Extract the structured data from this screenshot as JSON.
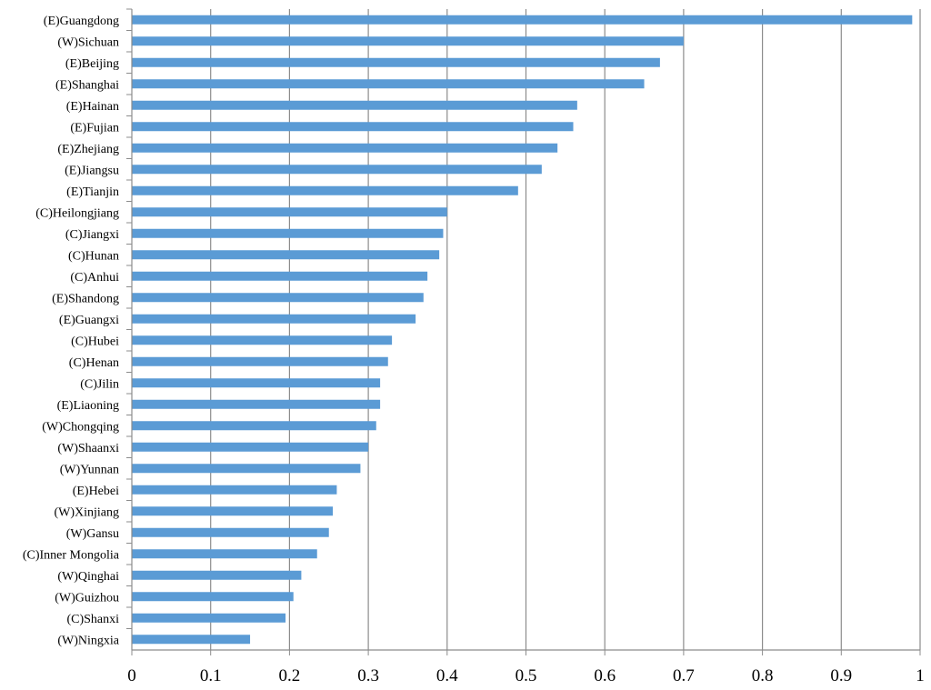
{
  "chart_data": {
    "type": "bar",
    "orientation": "horizontal",
    "categories": [
      "(E)Guangdong",
      "(W)Sichuan",
      "(E)Beijing",
      "(E)Shanghai",
      "(E)Hainan",
      "(E)Fujian",
      "(E)Zhejiang",
      "(E)Jiangsu",
      "(E)Tianjin",
      "(C)Heilongjiang",
      "(C)Jiangxi",
      "(C)Hunan",
      "(C)Anhui",
      "(E)Shandong",
      "(E)Guangxi",
      "(C)Hubei",
      "(C)Henan",
      "(C)Jilin",
      "(E)Liaoning",
      "(W)Chongqing",
      "(W)Shaanxi",
      "(W)Yunnan",
      "(E)Hebei",
      "(W)Xinjiang",
      "(W)Gansu",
      "(C)Inner Mongolia",
      "(W)Qinghai",
      "(W)Guizhou",
      "(C)Shanxi",
      "(W)Ningxia"
    ],
    "values": [
      0.99,
      0.7,
      0.67,
      0.65,
      0.565,
      0.56,
      0.54,
      0.52,
      0.49,
      0.4,
      0.395,
      0.39,
      0.375,
      0.37,
      0.36,
      0.33,
      0.325,
      0.315,
      0.315,
      0.31,
      0.3,
      0.29,
      0.26,
      0.255,
      0.25,
      0.235,
      0.215,
      0.205,
      0.195,
      0.15
    ],
    "xlim": [
      0,
      1
    ],
    "xticks": [
      "0",
      "0.1",
      "0.2",
      "0.3",
      "0.4",
      "0.5",
      "0.6",
      "0.7",
      "0.8",
      "0.9",
      "1"
    ],
    "title": "",
    "xlabel": "",
    "ylabel": "",
    "grid": "vertical major gridlines",
    "legend": "none",
    "bar_color": "#5B9BD5",
    "grid_color": "#8C8C8C"
  }
}
